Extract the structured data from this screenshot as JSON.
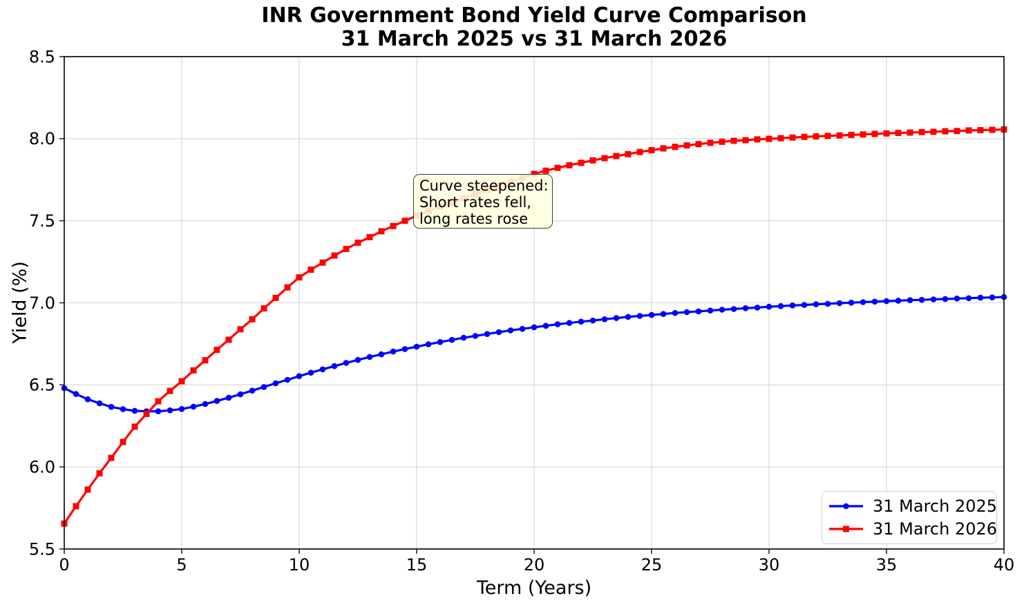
{
  "figure": {
    "background": "#ffffff",
    "spine_color": "#1a1a1a",
    "grid_color": "#dcdcdc",
    "text_color": "#000000"
  },
  "chart_data": {
    "type": "line",
    "title": "INR Government Bond Yield Curve Comparison\n31 March 2025 vs 31 March 2026",
    "title_lines": [
      "INR Government Bond Yield Curve Comparison",
      "31 March 2025 vs 31 March 2026"
    ],
    "xlabel": "Term (Years)",
    "ylabel": "Yield (%)",
    "xlim": [
      0,
      40
    ],
    "ylim": [
      5.5,
      8.5
    ],
    "xticks": [
      0,
      5,
      10,
      15,
      20,
      25,
      30,
      35,
      40
    ],
    "yticks": [
      5.5,
      6.0,
      6.5,
      7.0,
      7.5,
      8.0,
      8.5
    ],
    "grid": true,
    "legend_position": "lower right",
    "annotation": {
      "x": 14.9,
      "y": 7.78,
      "lines": [
        "Curve steepened:",
        "Short rates fell,",
        "long rates rose"
      ],
      "facecolor": "rgba(255,255,224,0.88)",
      "edgecolor": "#3d3d3d"
    },
    "legend_facecolor": "rgba(255,255,255,0.92)",
    "legend_edgecolor": "#cfcfcf",
    "x": [
      0,
      0.5,
      1,
      1.5,
      2,
      2.5,
      3,
      3.5,
      4,
      4.5,
      5,
      5.5,
      6,
      6.5,
      7,
      7.5,
      8,
      8.5,
      9,
      9.5,
      10,
      10.5,
      11,
      11.5,
      12,
      12.5,
      13,
      13.5,
      14,
      14.5,
      15,
      15.5,
      16,
      16.5,
      17,
      17.5,
      18,
      18.5,
      19,
      19.5,
      20,
      20.5,
      21,
      21.5,
      22,
      22.5,
      23,
      23.5,
      24,
      24.5,
      25,
      25.5,
      26,
      26.5,
      27,
      27.5,
      28,
      28.5,
      29,
      29.5,
      30,
      30.5,
      31,
      31.5,
      32,
      32.5,
      33,
      33.5,
      34,
      34.5,
      35,
      35.5,
      36,
      36.5,
      37,
      37.5,
      38,
      38.5,
      39,
      39.5,
      40
    ],
    "series": [
      {
        "name": "31 March 2025",
        "color": "#0000ff",
        "marker": "circle",
        "values": [
          6.48,
          6.444,
          6.412,
          6.388,
          6.366,
          6.352,
          6.342,
          6.339,
          6.339,
          6.345,
          6.353,
          6.367,
          6.383,
          6.402,
          6.422,
          6.443,
          6.465,
          6.487,
          6.51,
          6.531,
          6.553,
          6.574,
          6.595,
          6.614,
          6.634,
          6.652,
          6.67,
          6.686,
          6.703,
          6.718,
          6.733,
          6.747,
          6.761,
          6.774,
          6.787,
          6.798,
          6.81,
          6.821,
          6.832,
          6.841,
          6.851,
          6.86,
          6.869,
          6.877,
          6.885,
          6.892,
          6.9,
          6.907,
          6.914,
          6.92,
          6.926,
          6.932,
          6.938,
          6.943,
          6.948,
          6.953,
          6.958,
          6.962,
          6.967,
          6.971,
          6.976,
          6.98,
          6.984,
          6.987,
          6.991,
          6.994,
          6.998,
          7.001,
          7.004,
          7.007,
          7.01,
          7.013,
          7.016,
          7.018,
          7.021,
          7.023,
          7.026,
          7.028,
          7.031,
          7.033,
          7.035
        ]
      },
      {
        "name": "31 March 2026",
        "color": "#ff0000",
        "marker": "square",
        "values": [
          5.655,
          5.761,
          5.862,
          5.961,
          6.055,
          6.152,
          6.245,
          6.323,
          6.4,
          6.463,
          6.522,
          6.588,
          6.65,
          6.714,
          6.775,
          6.839,
          6.9,
          6.966,
          7.03,
          7.094,
          7.155,
          7.202,
          7.245,
          7.288,
          7.328,
          7.366,
          7.4,
          7.436,
          7.468,
          7.5,
          7.53,
          7.559,
          7.586,
          7.613,
          7.638,
          7.664,
          7.688,
          7.713,
          7.737,
          7.762,
          7.785,
          7.805,
          7.822,
          7.838,
          7.853,
          7.868,
          7.881,
          7.894,
          7.906,
          7.919,
          7.93,
          7.941,
          7.95,
          7.959,
          7.967,
          7.975,
          7.981,
          7.987,
          7.991,
          7.996,
          7.999,
          8.003,
          8.007,
          8.011,
          8.014,
          8.017,
          8.02,
          8.023,
          8.026,
          8.029,
          8.032,
          8.035,
          8.037,
          8.04,
          8.042,
          8.045,
          8.047,
          8.05,
          8.052,
          8.054,
          8.056
        ]
      }
    ]
  }
}
